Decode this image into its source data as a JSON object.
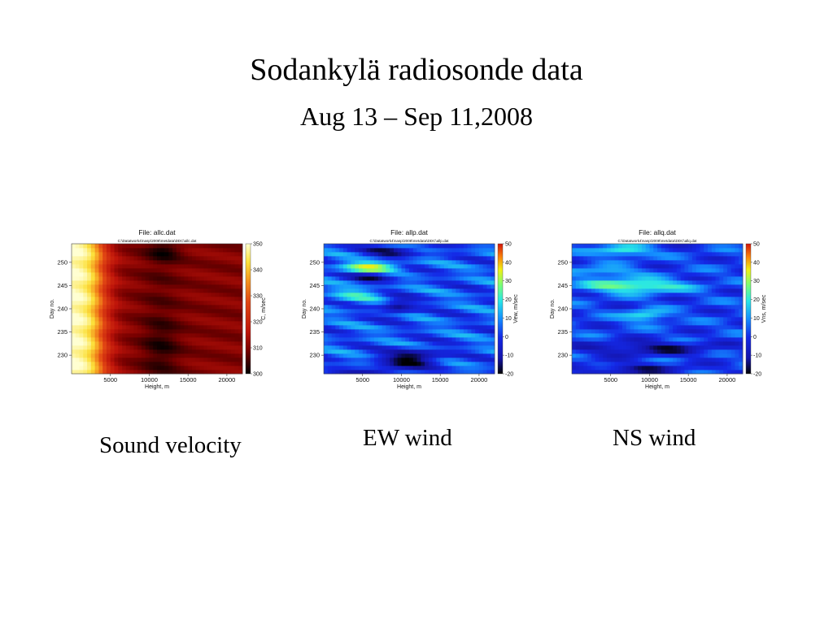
{
  "slide": {
    "title": "Sodankylä radiosonde data",
    "subtitle": "Aug 13 – Sep 11,2008"
  },
  "captions": [
    "Sound velocity",
    "EW wind",
    "NS wind"
  ],
  "chart_data": [
    {
      "type": "heatmap",
      "title": "File: allc.dat",
      "subtitle": "C:\\Datatwork4\\nasp\\2008\\metdata\\DDC\\allc.dat",
      "xlabel": "Height, m",
      "ylabel": "Day no.",
      "colorbar_label": "C, m/sec",
      "x_ticks": [
        5000,
        10000,
        15000,
        20000
      ],
      "y_ticks": [
        230,
        235,
        240,
        245,
        250
      ],
      "colorbar_ticks": [
        300,
        310,
        320,
        330,
        340,
        350
      ],
      "xlim": [
        0,
        22000
      ],
      "ylim": [
        226,
        254
      ],
      "clim": [
        300,
        350
      ],
      "colormap": "hot",
      "field": "sound_velocity",
      "caption": "Sound velocity"
    },
    {
      "type": "heatmap",
      "title": "File: allp.dat",
      "subtitle": "C:\\Datatwork4\\nasp\\2008\\metdata\\DDC\\allp.dat",
      "xlabel": "Height, m",
      "ylabel": "Day no.",
      "colorbar_label": "Vew, m/sec",
      "x_ticks": [
        5000,
        10000,
        15000,
        20000
      ],
      "y_ticks": [
        230,
        235,
        240,
        245,
        250
      ],
      "colorbar_ticks": [
        -20,
        -10,
        0,
        10,
        20,
        30,
        40,
        50
      ],
      "xlim": [
        0,
        22000
      ],
      "ylim": [
        226,
        254
      ],
      "clim": [
        -20,
        50
      ],
      "colormap": "jet",
      "field": "ew_wind",
      "caption": "EW wind"
    },
    {
      "type": "heatmap",
      "title": "File: allq.dat",
      "subtitle": "C:\\Datatwork4\\nasp\\2008\\metdata\\DDC\\allq.dat",
      "xlabel": "Height, m",
      "ylabel": "Day no.",
      "colorbar_label": "Vns, m/sec",
      "x_ticks": [
        5000,
        10000,
        15000,
        20000
      ],
      "y_ticks": [
        230,
        235,
        240,
        245,
        250
      ],
      "colorbar_ticks": [
        -20,
        -10,
        0,
        10,
        20,
        30,
        40,
        50
      ],
      "xlim": [
        0,
        22000
      ],
      "ylim": [
        226,
        254
      ],
      "clim": [
        -20,
        50
      ],
      "colormap": "jet",
      "field": "ns_wind",
      "caption": "NS wind"
    }
  ]
}
